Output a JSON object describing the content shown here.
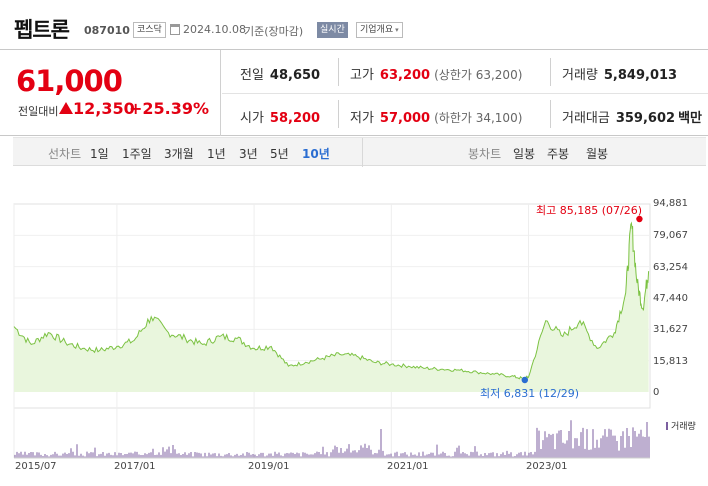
{
  "header": {
    "stock_name": "펩트론",
    "stock_code": "087010",
    "market_badge": "코스닥",
    "calendar_icon": "calendar-icon",
    "date": "2024.10.08",
    "basis": "기준(장마감)",
    "realtime_label": "실시간",
    "company_label": "기업개요",
    "company_chevron": "▾"
  },
  "price": {
    "current": "61,000",
    "diff_label": "전일대비",
    "diff_icon": "up-triangle-icon",
    "diff_value": "12,350",
    "diff_pct": "+25.39%"
  },
  "stats": {
    "prev_close": {
      "label": "전일",
      "value": "48,650"
    },
    "high": {
      "label": "고가",
      "value": "63,200",
      "sub": "(상한가 63,200)"
    },
    "volume": {
      "label": "거래량",
      "value": "5,849,013"
    },
    "open": {
      "label": "시가",
      "value": "58,200"
    },
    "low": {
      "label": "저가",
      "value": "57,000",
      "sub": "(하한가 34,100)"
    },
    "amount": {
      "label": "거래대금",
      "value": "359,602",
      "unit": "백만"
    }
  },
  "tabs": {
    "line_label": "선차트",
    "line_periods": [
      "1일",
      "1주일",
      "3개월",
      "1년",
      "3년",
      "5년",
      "10년"
    ],
    "active_period": "10년",
    "candle_label": "봉차트",
    "candle_periods": [
      "일봉",
      "주봉",
      "월봉"
    ]
  },
  "chart": {
    "y_ticks": [
      "94,881",
      "79,067",
      "63,254",
      "47,440",
      "31,627",
      "15,813",
      "0"
    ],
    "x_ticks": [
      "2015/07",
      "2017/01",
      "2019/01",
      "2021/01",
      "2023/01"
    ],
    "max_label": "최고 85,185 (07/26)",
    "min_label": "최저 6,831 (12/29)",
    "volume_legend": "거래량",
    "colors": {
      "line": "#7cc243",
      "fill": "#e9f6dd",
      "volume": "#7c5fa0",
      "max": "#e30012",
      "min": "#2a6dd1"
    }
  },
  "chart_data": {
    "type": "area",
    "ylim": [
      0,
      94881
    ],
    "x": [
      "2015/07",
      "2015/10",
      "2016/01",
      "2016/04",
      "2016/07",
      "2016/10",
      "2017/01",
      "2017/04",
      "2017/07",
      "2017/10",
      "2018/01",
      "2018/04",
      "2018/07",
      "2018/10",
      "2019/01",
      "2019/04",
      "2019/07",
      "2019/10",
      "2020/01",
      "2020/04",
      "2020/07",
      "2020/10",
      "2021/01",
      "2021/04",
      "2021/07",
      "2021/10",
      "2022/01",
      "2022/04",
      "2022/07",
      "2022/10",
      "2022/12",
      "2023/01",
      "2023/04",
      "2023/07",
      "2023/10",
      "2024/01",
      "2024/04",
      "2024/06",
      "2024/07",
      "2024/08",
      "2024/09",
      "2024/10"
    ],
    "values": [
      33000,
      24000,
      30000,
      25000,
      22000,
      21000,
      23000,
      26000,
      38000,
      30000,
      27000,
      24000,
      28000,
      27000,
      22000,
      23000,
      13000,
      15000,
      17000,
      19000,
      18000,
      15000,
      14000,
      13000,
      12000,
      11500,
      11000,
      10000,
      9000,
      8000,
      6831,
      7500,
      36000,
      28000,
      36000,
      22000,
      30000,
      50000,
      85185,
      55000,
      42000,
      61000
    ],
    "max": {
      "value": 85185,
      "date": "07/26"
    },
    "min": {
      "value": 6831,
      "date": "12/29"
    }
  }
}
